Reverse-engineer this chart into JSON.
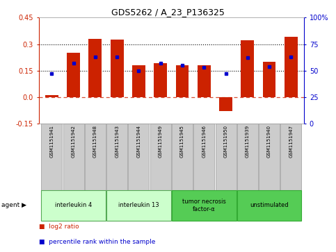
{
  "title": "GDS5262 / A_23_P136325",
  "samples": [
    "GSM1151941",
    "GSM1151942",
    "GSM1151948",
    "GSM1151943",
    "GSM1151944",
    "GSM1151949",
    "GSM1151945",
    "GSM1151946",
    "GSM1151950",
    "GSM1151939",
    "GSM1151940",
    "GSM1151947"
  ],
  "log2_ratio": [
    0.01,
    0.25,
    0.33,
    0.325,
    0.18,
    0.19,
    0.18,
    0.18,
    -0.08,
    0.32,
    0.2,
    0.34
  ],
  "percentile": [
    47,
    57,
    63,
    63,
    50,
    57,
    55,
    53,
    47,
    62,
    54,
    63
  ],
  "agents": [
    {
      "label": "interleukin 4",
      "indices": [
        0,
        1,
        2
      ],
      "color": "#ccffcc",
      "border": "#55aa55"
    },
    {
      "label": "interleukin 13",
      "indices": [
        3,
        4,
        5
      ],
      "color": "#ccffcc",
      "border": "#55aa55"
    },
    {
      "label": "tumor necrosis\nfactor-α",
      "indices": [
        6,
        7,
        8
      ],
      "color": "#55cc55",
      "border": "#33aa33"
    },
    {
      "label": "unstimulated",
      "indices": [
        9,
        10,
        11
      ],
      "color": "#55cc55",
      "border": "#33aa33"
    }
  ],
  "ylim_left": [
    -0.15,
    0.45
  ],
  "ylim_right": [
    0,
    100
  ],
  "yticks_left": [
    -0.15,
    0.0,
    0.15,
    0.3,
    0.45
  ],
  "yticks_right": [
    0,
    25,
    50,
    75,
    100
  ],
  "hlines": [
    0.15,
    0.3
  ],
  "bar_color": "#cc2200",
  "dot_color": "#0000cc",
  "background_color": "#ffffff",
  "legend_items": [
    "log2 ratio",
    "percentile rank within the sample"
  ]
}
